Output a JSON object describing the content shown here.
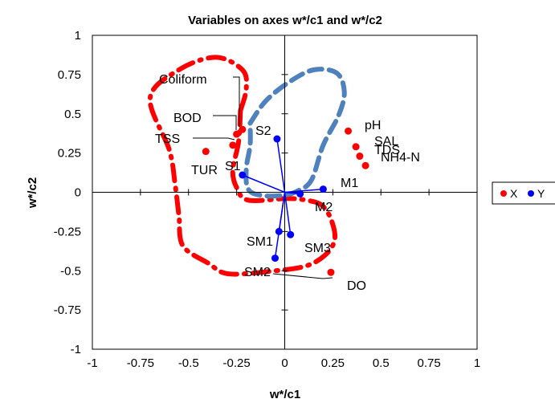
{
  "chart_data": {
    "type": "scatter",
    "title": "Variables on axes w*/c1 and w*/c2",
    "xlabel": "w*/c1",
    "ylabel": "w*/c2",
    "xlim": [
      -1,
      1
    ],
    "ylim": [
      -1,
      1
    ],
    "x_ticks": [
      -1,
      -0.75,
      -0.5,
      -0.25,
      0,
      0.25,
      0.5,
      0.75,
      1
    ],
    "x_tick_labels": [
      "-1",
      "-0.75",
      "-0.5",
      "-0.25",
      "0",
      "0.25",
      "0.5",
      "0.75",
      "1"
    ],
    "y_ticks": [
      -1,
      -0.75,
      -0.5,
      -0.25,
      0,
      0.25,
      0.5,
      0.75,
      1
    ],
    "y_tick_labels": [
      "-1",
      "-0.75",
      "-0.5",
      "-0.25",
      "0",
      "0.25",
      "0.5",
      "0.75",
      "1"
    ],
    "grid": false,
    "legend_position": "right",
    "series": [
      {
        "name": "X",
        "color": "#ff0000",
        "points": [
          {
            "label": "Coliform",
            "x": -0.22,
            "y": 0.4
          },
          {
            "label": "BOD",
            "x": -0.25,
            "y": 0.37
          },
          {
            "label": "TSS",
            "x": -0.27,
            "y": 0.3
          },
          {
            "label": "TUR",
            "x": -0.41,
            "y": 0.26
          },
          {
            "label": "pH",
            "x": 0.33,
            "y": 0.39
          },
          {
            "label": "SAL",
            "x": 0.37,
            "y": 0.29
          },
          {
            "label": "TDS",
            "x": 0.39,
            "y": 0.23
          },
          {
            "label": "NH4-N",
            "x": 0.42,
            "y": 0.17
          },
          {
            "label": "DO",
            "x": 0.24,
            "y": -0.51
          }
        ]
      },
      {
        "name": "Y",
        "color": "#0000ff",
        "points": [
          {
            "label": "S2",
            "x": -0.04,
            "y": 0.34
          },
          {
            "label": "S1",
            "x": -0.22,
            "y": 0.11
          },
          {
            "label": "M1",
            "x": 0.2,
            "y": 0.02
          },
          {
            "label": "M2",
            "x": 0.08,
            "y": -0.01
          },
          {
            "label": "SM1",
            "x": -0.03,
            "y": -0.25
          },
          {
            "label": "SM3",
            "x": 0.03,
            "y": -0.27
          },
          {
            "label": "SM2",
            "x": -0.05,
            "y": -0.42
          }
        ]
      }
    ],
    "annotations": [
      {
        "label": "Coliform",
        "point": [
          -0.22,
          0.4
        ]
      },
      {
        "label": "BOD",
        "point": [
          -0.25,
          0.37
        ]
      },
      {
        "label": "TSS",
        "point": [
          -0.27,
          0.3
        ]
      },
      {
        "label": "SM2",
        "point": [
          0.24,
          -0.36
        ]
      }
    ],
    "regions": [
      {
        "color": "#ff0000",
        "style": "dash-dot",
        "outline": [
          [
            -0.23,
            0.52
          ],
          [
            -0.2,
            0.66
          ],
          [
            -0.22,
            0.78
          ],
          [
            -0.36,
            0.86
          ],
          [
            -0.55,
            0.78
          ],
          [
            -0.7,
            0.6
          ],
          [
            -0.6,
            0.27
          ],
          [
            -0.57,
            0.05
          ],
          [
            -0.55,
            -0.15
          ],
          [
            -0.53,
            -0.34
          ],
          [
            -0.4,
            -0.45
          ],
          [
            -0.29,
            -0.52
          ],
          [
            -0.05,
            -0.5
          ],
          [
            0.11,
            -0.47
          ],
          [
            0.21,
            -0.4
          ],
          [
            0.26,
            -0.3
          ],
          [
            0.24,
            -0.17
          ],
          [
            0.19,
            -0.08
          ],
          [
            0.11,
            -0.05
          ],
          [
            0.01,
            -0.04
          ],
          [
            -0.19,
            -0.05
          ],
          [
            -0.25,
            0.03
          ],
          [
            -0.27,
            0.14
          ],
          [
            -0.24,
            0.32
          ],
          [
            -0.23,
            0.52
          ]
        ]
      },
      {
        "color": "#4f81bd",
        "style": "dash",
        "outline": [
          [
            -0.18,
            0.44
          ],
          [
            -0.1,
            0.58
          ],
          [
            0.02,
            0.7
          ],
          [
            0.15,
            0.78
          ],
          [
            0.27,
            0.76
          ],
          [
            0.31,
            0.64
          ],
          [
            0.28,
            0.49
          ],
          [
            0.2,
            0.3
          ],
          [
            0.14,
            0.08
          ],
          [
            0.07,
            0.01
          ],
          [
            -0.01,
            -0.02
          ],
          [
            -0.12,
            -0.02
          ],
          [
            -0.19,
            0.02
          ],
          [
            -0.2,
            0.15
          ],
          [
            -0.18,
            0.3
          ],
          [
            -0.18,
            0.44
          ]
        ]
      }
    ]
  }
}
